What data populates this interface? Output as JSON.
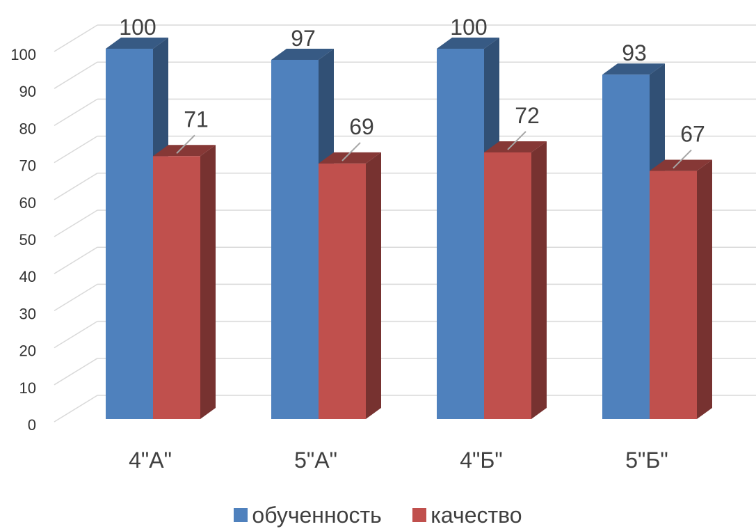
{
  "chart_data": {
    "type": "bar",
    "categories": [
      "4\"А\"",
      "5\"А\"",
      "4\"Б\"",
      "5\"Б\""
    ],
    "series": [
      {
        "name": "обученность",
        "values": [
          100,
          97,
          100,
          93
        ],
        "color": "#4F81BD"
      },
      {
        "name": "качество",
        "values": [
          71,
          69,
          72,
          67
        ],
        "color": "#C0504D"
      }
    ],
    "yticks": [
      0,
      10,
      20,
      30,
      40,
      50,
      60,
      70,
      80,
      90,
      100
    ],
    "ylim": [
      0,
      100
    ],
    "grid": true,
    "style": "3d-clustered-column",
    "legend_position": "bottom"
  }
}
